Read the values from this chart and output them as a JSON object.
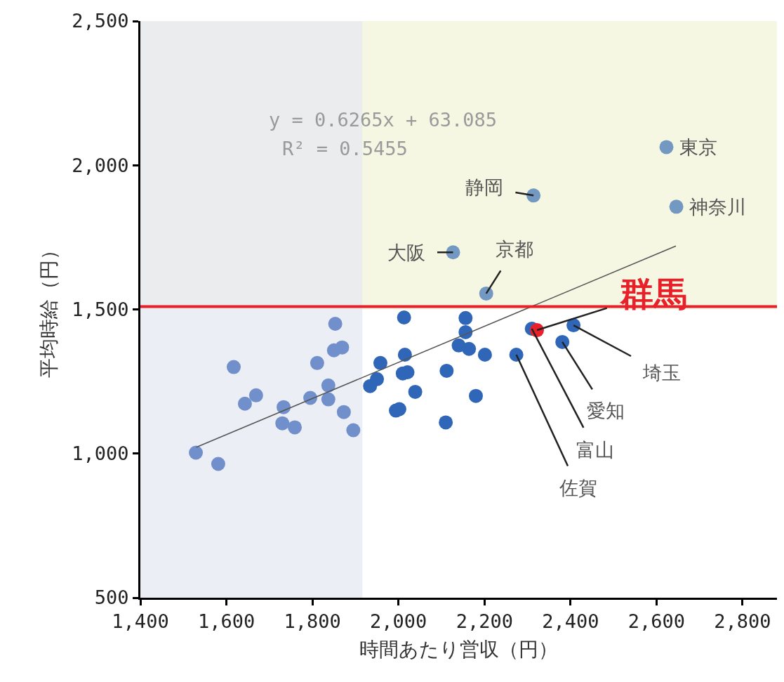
{
  "chart_data": {
    "type": "scatter",
    "xlabel": "時間あたり営収（円）",
    "ylabel": "平均時給（円）",
    "xlim": [
      1400,
      2880
    ],
    "ylim": [
      500,
      2500
    ],
    "xticks": [
      {
        "value": 1400,
        "label": "1,400"
      },
      {
        "value": 1600,
        "label": "1,600"
      },
      {
        "value": 1800,
        "label": "1,800"
      },
      {
        "value": 2000,
        "label": "2,000"
      },
      {
        "value": 2200,
        "label": "2,200"
      },
      {
        "value": 2400,
        "label": "2,400"
      },
      {
        "value": 2600,
        "label": "2,600"
      },
      {
        "value": 2800,
        "label": "2,800"
      }
    ],
    "yticks": [
      500,
      {
        "value": 1000,
        "label": "1,000"
      },
      {
        "value": 1500,
        "label": "1,500"
      },
      {
        "value": 2000,
        "label": "2,000"
      },
      {
        "value": 2500,
        "label": "2,500"
      }
    ],
    "grid": false,
    "marker": "circle",
    "series": [
      {
        "x": [
          1529,
          1581,
          1617,
          1643,
          1669,
          1733,
          1730,
          1759,
          1795,
          1811,
          1837,
          1837,
          1853,
          1850,
          1869,
          1873,
          1895
        ],
        "values": [
          1003,
          964,
          1300,
          1173,
          1202,
          1161,
          1105,
          1091,
          1193,
          1314,
          1236,
          1188,
          1450,
          1358,
          1368,
          1144,
          1081
        ],
        "color": "#7190cb"
      },
      {
        "x": [
          2013,
          2156,
          2156,
          2140,
          2164,
          2201,
          2274,
          2310,
          2381,
          2407,
          2015,
          1958,
          1950,
          1934,
          2021,
          2010,
          2112,
          2039,
          2180,
          2002,
          1994,
          2110
        ],
        "values": [
          1472,
          1470,
          1421,
          1375,
          1363,
          1343,
          1343,
          1433,
          1387,
          1445,
          1343,
          1314,
          1258,
          1234,
          1282,
          1278,
          1287,
          1214,
          1200,
          1154,
          1149,
          1108
        ],
        "color": "#2f66b8"
      },
      {
        "x": [
          2623,
          2646,
          2314,
          2127,
          2204
        ],
        "values": [
          2063,
          1856,
          1895,
          1698,
          1555
        ],
        "color": "#7399c2"
      },
      {
        "x": [
          2322
        ],
        "values": [
          1428
        ],
        "color": "#e8202a"
      },
      {
        "type": "line",
        "x": [
          1530,
          2645
        ],
        "values": [
          1022,
          1720
        ],
        "color": "#555555",
        "marker": "none"
      }
    ],
    "ref_lines": [
      {
        "axis": "y",
        "value": 1510,
        "color": "#e8202a"
      }
    ],
    "bands": [
      {
        "axis": "y",
        "from": 1500,
        "to": 2500,
        "color": "#f5f7e2"
      },
      {
        "axis": "x",
        "from": 1400,
        "to": 1916,
        "color": "#e6e8f2"
      }
    ],
    "annotations": [
      "y = 0.6265x + 63.085",
      "R² = 0.5455",
      {
        "text": "東京",
        "x": 2623,
        "y": 2063
      },
      {
        "text": "神奈川",
        "x": 2646,
        "y": 1856
      },
      {
        "text": "静岡",
        "x": 2314,
        "y": 1895
      },
      {
        "text": "大阪",
        "x": 2127,
        "y": 1698
      },
      {
        "text": "京都",
        "x": 2204,
        "y": 1555
      },
      {
        "text": "群馬",
        "x": 2322,
        "y": 1428
      },
      {
        "text": "埼玉",
        "x": 2407,
        "y": 1445
      },
      {
        "text": "愛知",
        "x": 2381,
        "y": 1387
      },
      {
        "text": "富山",
        "x": 2310,
        "y": 1433
      },
      {
        "text": "佐賀",
        "x": 2274,
        "y": 1343
      }
    ]
  }
}
